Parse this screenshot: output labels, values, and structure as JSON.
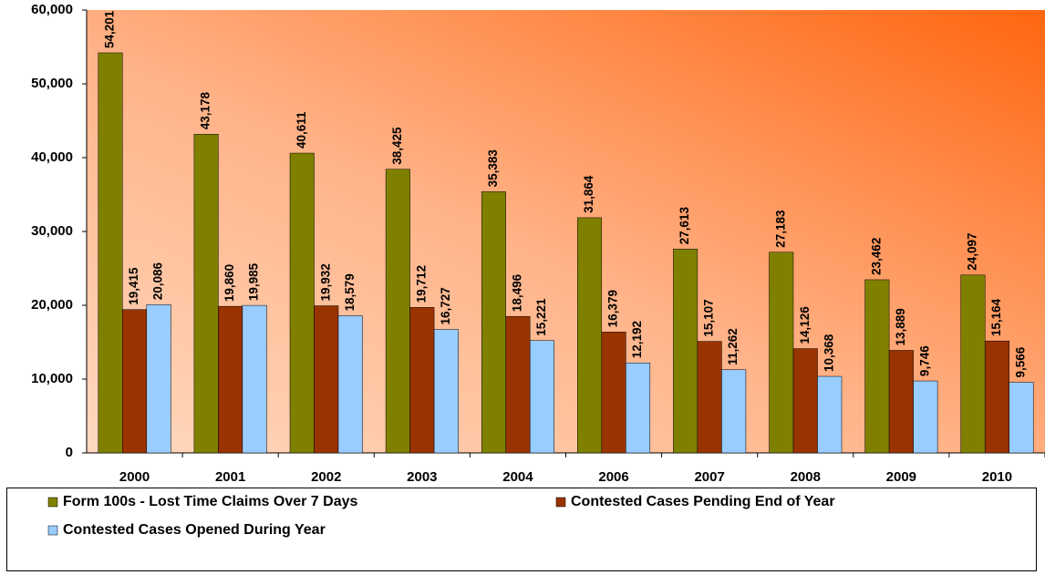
{
  "chart_data": {
    "type": "bar",
    "categories": [
      "2000",
      "2001",
      "2002",
      "2003",
      "2004",
      "2006",
      "2007",
      "2008",
      "2009",
      "2010"
    ],
    "series": [
      {
        "name": "Form 100s - Lost Time Claims Over 7 Days",
        "color": "#808000",
        "values": [
          54201,
          43178,
          40611,
          38425,
          35383,
          31864,
          27613,
          27183,
          23462,
          24097
        ],
        "value_labels": [
          "54,201",
          "43,178",
          "40,611",
          "38,425",
          "35,383",
          "31,864",
          "27,613",
          "27,183",
          "23,462",
          "24,097"
        ]
      },
      {
        "name": "Contested Cases Pending End of Year",
        "color": "#993300",
        "values": [
          19415,
          19860,
          19932,
          19712,
          18496,
          16379,
          15107,
          14126,
          13889,
          15164
        ],
        "value_labels": [
          "19,415",
          "19,860",
          "19,932",
          "19,712",
          "18,496",
          "16,379",
          "15,107",
          "14,126",
          "13,889",
          "15,164"
        ]
      },
      {
        "name": "Contested Cases Opened During Year",
        "color": "#99ccff",
        "values": [
          20086,
          19985,
          18579,
          16727,
          15221,
          12192,
          11262,
          10368,
          9746,
          9566
        ],
        "value_labels": [
          "20,086",
          "19,985",
          "18,579",
          "16,727",
          "15,221",
          "12,192",
          "11,262",
          "10,368",
          "9,746",
          "9,566"
        ]
      }
    ],
    "ylim": [
      0,
      60000
    ],
    "yticks": [
      0,
      {
        "value": 10000,
        "label": "10,000"
      },
      {
        "value": 20000,
        "label": "20,000"
      },
      {
        "value": 30000,
        "label": "30,000"
      },
      {
        "value": 40000,
        "label": "40,000"
      },
      {
        "value": 50000,
        "label": "50,000"
      },
      {
        "value": 60000,
        "label": "60,000"
      }
    ],
    "legend": "bottom"
  }
}
